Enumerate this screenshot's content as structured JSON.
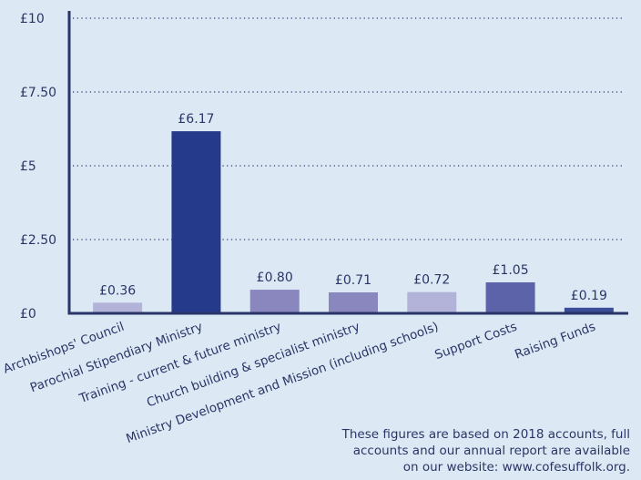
{
  "chart_data": {
    "type": "bar",
    "categories": [
      "Archbishops' Council",
      "Parochial Stipendiary Ministry",
      "Training - current & future ministry",
      "Church building & specialist ministry",
      "Ministry Development and Mission (including schools)",
      "Support Costs",
      "Raising Funds"
    ],
    "values": [
      0.36,
      6.17,
      0.8,
      0.71,
      0.72,
      1.05,
      0.19
    ],
    "data_labels": [
      "£0.36",
      "£6.17",
      "£0.80",
      "£0.71",
      "£0.72",
      "£1.05",
      "£0.19"
    ],
    "bar_colors": [
      "#b3b3d9",
      "#253a8a",
      "#8a87bf",
      "#8a87bf",
      "#b3b3d9",
      "#5c63a8",
      "#3b4c99"
    ],
    "ylim": [
      0,
      10
    ],
    "y_ticks": [
      0,
      2.5,
      5,
      7.5,
      10
    ],
    "y_tick_labels": [
      "£0",
      "£2.50",
      "£5",
      "£7.50",
      "£10"
    ],
    "grid": true
  },
  "footnote": {
    "lines": [
      "These figures are based on 2018 accounts, full",
      "accounts and our annual report are available",
      "on our website: www.cofesuffolk.org."
    ]
  },
  "colors": {
    "background": "#dce9f5",
    "text": "#2a3566"
  }
}
